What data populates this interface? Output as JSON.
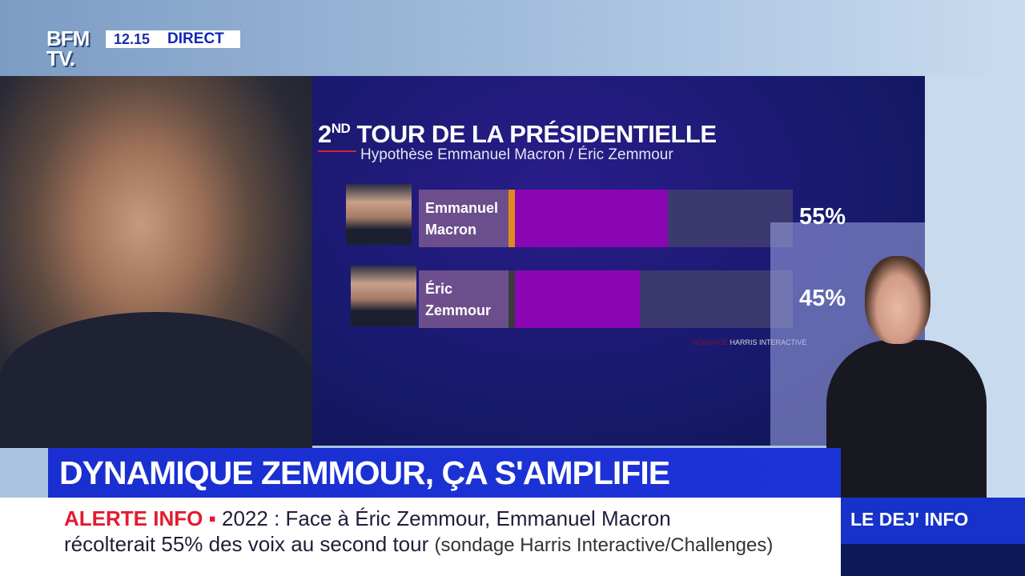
{
  "header": {
    "logo": "BFM TV.",
    "time": "12.15",
    "live_label": "DIRECT"
  },
  "chart_data": {
    "type": "bar",
    "orientation": "horizontal",
    "title_ordinal": "2",
    "title_suffix": "ND",
    "title": "TOUR DE LA PRÉSIDENTIELLE",
    "subtitle": "Hypothèse Emmanuel Macron / Éric Zemmour",
    "categories": [
      [
        "Emmanuel",
        "Macron"
      ],
      [
        "Éric",
        "Zemmour"
      ]
    ],
    "values": [
      55,
      45
    ],
    "value_labels": [
      "55%",
      "45%"
    ],
    "xlim": [
      0,
      100
    ],
    "unit": "%",
    "source_prefix": "SONDAGE",
    "source": "HARRIS INTERACTIVE",
    "colors": {
      "bar": "#8b06b3",
      "track": "#3b3970",
      "label_box": "#6c4e8c",
      "macron_marker": "#e08a1e",
      "zemmour_marker": "#3a3a3a"
    }
  },
  "headline": "DYNAMIQUE ZEMMOUR, ÇA S'AMPLIFIE",
  "ticker": {
    "alert_label": "ALERTE INFO ▪",
    "line1": "2022 : Face à Éric Zemmour, Emmanuel Macron",
    "line2": "récolterait 55% des voix au second tour",
    "source": "(sondage Harris Interactive/Challenges)"
  },
  "program": "LE DEJ' INFO"
}
